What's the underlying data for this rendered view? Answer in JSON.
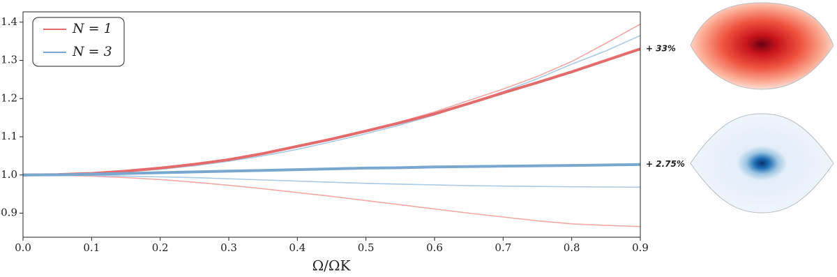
{
  "chart_data": {
    "type": "line",
    "xlabel": "Ω/ΩK",
    "x": [
      0,
      0.05,
      0.1,
      0.15,
      0.2,
      0.25,
      0.3,
      0.35,
      0.4,
      0.45,
      0.5,
      0.55,
      0.6,
      0.65,
      0.7,
      0.75,
      0.8,
      0.85,
      0.9
    ],
    "series": [
      {
        "color": "#f3a8a8",
        "values": [
          1.0,
          1.001,
          1.004,
          1.01,
          1.018,
          1.028,
          1.04,
          1.056,
          1.074,
          1.094,
          1.115,
          1.139,
          1.165,
          1.195,
          1.225,
          1.258,
          1.297,
          1.345,
          1.395
        ]
      },
      {
        "color": "#f3a8a8",
        "values": [
          1.0,
          0.999,
          0.997,
          0.993,
          0.988,
          0.981,
          0.973,
          0.964,
          0.954,
          0.944,
          0.933,
          0.922,
          0.911,
          0.9,
          0.89,
          0.88,
          0.872,
          0.868,
          0.865
        ]
      },
      {
        "color": "#aacae6",
        "values": [
          1.0,
          1.001,
          1.003,
          1.008,
          1.015,
          1.024,
          1.036,
          1.05,
          1.067,
          1.087,
          1.108,
          1.131,
          1.157,
          1.187,
          1.218,
          1.252,
          1.29,
          1.325,
          1.365
        ]
      },
      {
        "color": "#aacae6",
        "values": [
          1.0,
          0.9995,
          0.999,
          0.997,
          0.995,
          0.993,
          0.99,
          0.987,
          0.984,
          0.981,
          0.978,
          0.976,
          0.974,
          0.972,
          0.971,
          0.97,
          0.969,
          0.9685,
          0.968
        ]
      },
      {
        "name": "N = 1",
        "color": "#e36b6b",
        "values": [
          1.0,
          1.001,
          1.004,
          1.01,
          1.018,
          1.028,
          1.04,
          1.056,
          1.075,
          1.094,
          1.115,
          1.137,
          1.16,
          1.187,
          1.215,
          1.242,
          1.27,
          1.3,
          1.33
        ]
      },
      {
        "name": "N = 3",
        "color": "#7aa7d0",
        "values": [
          1.0,
          1.0005,
          1.002,
          1.004,
          1.006,
          1.008,
          1.01,
          1.012,
          1.014,
          1.016,
          1.018,
          1.019,
          1.021,
          1.022,
          1.023,
          1.024,
          1.025,
          1.026,
          1.0275
        ]
      }
    ],
    "annotations": [
      "+ 33%",
      "+ 2.75%"
    ],
    "xlim": [
      0,
      0.9
    ],
    "xticks": [
      {
        "value": 0,
        "label": "0.0"
      },
      0.1,
      0.2,
      0.3,
      0.4,
      0.5,
      0.6,
      0.7,
      0.8,
      0.9
    ],
    "ylim": [
      0.837,
      1.427
    ],
    "yticks": [
      0.9,
      {
        "value": 1,
        "label": "1.0"
      },
      1.1,
      1.2,
      1.3,
      1.4
    ],
    "grid": false
  }
}
